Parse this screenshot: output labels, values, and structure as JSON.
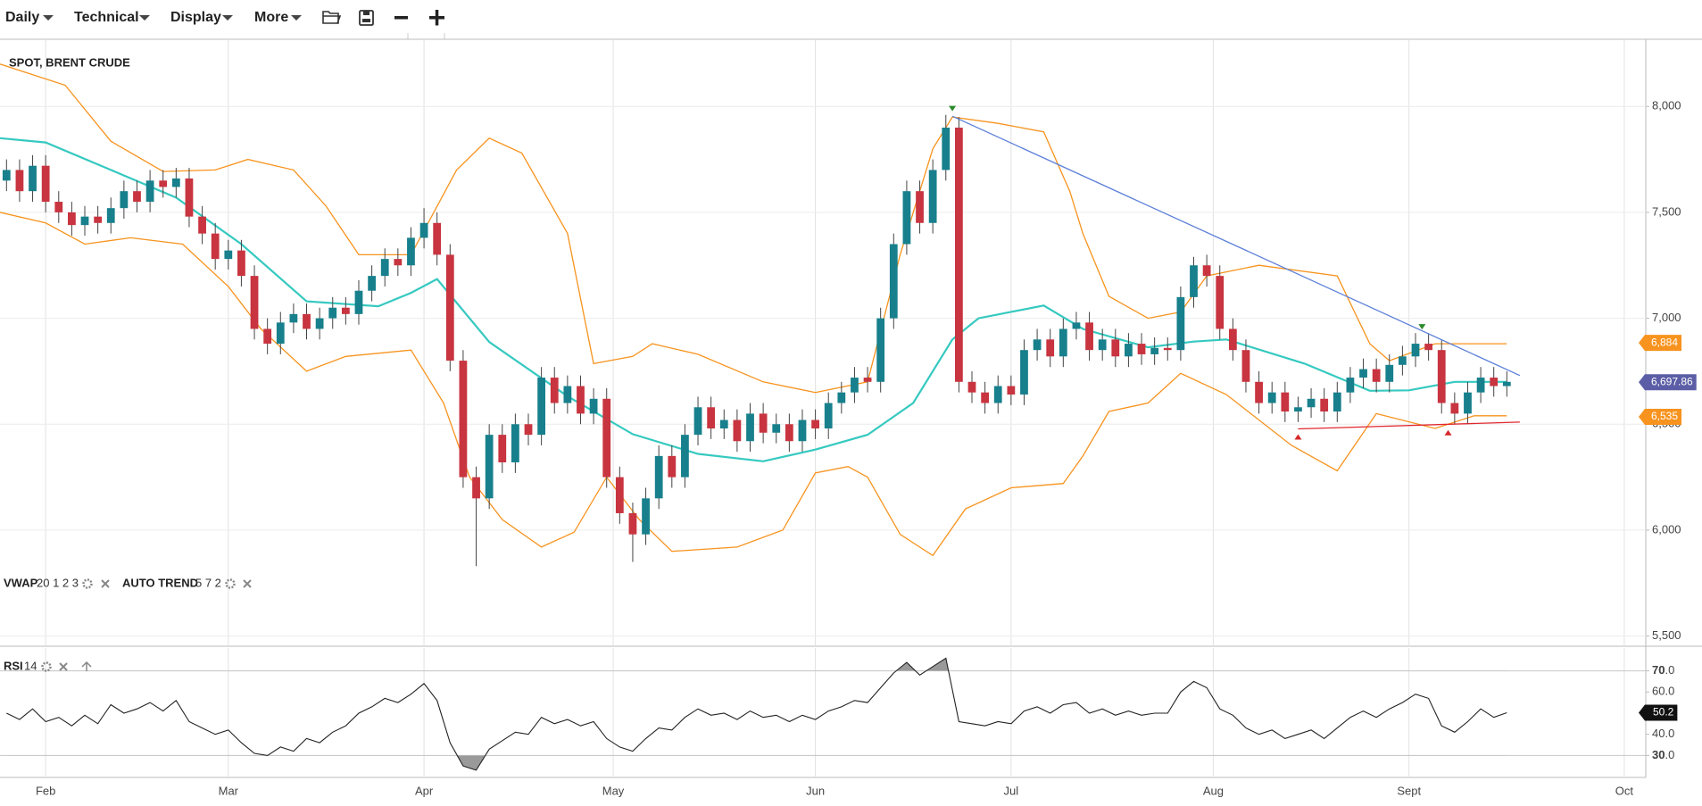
{
  "toolbar": {
    "menus": [
      "Daily",
      "Technical",
      "Display",
      "More"
    ]
  },
  "chart_data": [
    {
      "type": "candlestick",
      "title": "SPOT, BRENT CRUDE",
      "indicators": [
        {
          "name": "VWAP",
          "params": "20 1 2 3"
        },
        {
          "name": "AUTO TREND",
          "params": "5 7 2"
        }
      ],
      "x": [
        25,
        27,
        29,
        31,
        33,
        35,
        37,
        39,
        41,
        43,
        45,
        47,
        49,
        51,
        53,
        55,
        57,
        59,
        61,
        63,
        65,
        67,
        69,
        71,
        73,
        75,
        77,
        79,
        81,
        83,
        85,
        87,
        89,
        91,
        93,
        95,
        97,
        99,
        101,
        103,
        105,
        107,
        109,
        111,
        113,
        115,
        117,
        119,
        121,
        123,
        125,
        127,
        129,
        131,
        133,
        135,
        137,
        139,
        141,
        143,
        145,
        147,
        149,
        151,
        153,
        155,
        157,
        159,
        161,
        163,
        165,
        167,
        169,
        171,
        173,
        175,
        177,
        179,
        181,
        183,
        185,
        187,
        189,
        191,
        193,
        195,
        197,
        199,
        201,
        203,
        205,
        207,
        209,
        211,
        213,
        215,
        217,
        219,
        221,
        223,
        225,
        227,
        229,
        231,
        233,
        235,
        237,
        239,
        241,
        243,
        245,
        247,
        249,
        251,
        253,
        255
      ],
      "open": [
        7650,
        7700,
        7600,
        7720,
        7550,
        7500,
        7440,
        7480,
        7450,
        7520,
        7600,
        7550,
        7650,
        7620,
        7660,
        7480,
        7400,
        7280,
        7320,
        7200,
        6950,
        6880,
        6980,
        7020,
        6950,
        7000,
        7050,
        7020,
        7130,
        7200,
        7280,
        7250,
        7380,
        7450,
        7300,
        6800,
        6250,
        6150,
        6450,
        6320,
        6500,
        6450,
        6720,
        6600,
        6680,
        6550,
        6620,
        6250,
        6080,
        5980,
        6150,
        6350,
        6250,
        6450,
        6580,
        6480,
        6520,
        6420,
        6550,
        6460,
        6500,
        6420,
        6520,
        6480,
        6600,
        6650,
        6720,
        6700,
        7000,
        7350,
        7600,
        7450,
        7700,
        7900,
        6700,
        6650,
        6600,
        6680,
        6640,
        6850,
        6900,
        6820,
        6950,
        6980,
        6850,
        6900,
        6820,
        6880,
        6830,
        6860,
        6850,
        7100,
        7250,
        7200,
        6950,
        6850,
        6700,
        6600,
        6650,
        6560,
        6580,
        6620,
        6560,
        6650,
        6720,
        6760,
        6700,
        6780,
        6820,
        6880,
        6850,
        6600,
        6550,
        6650,
        6720,
        6680
      ],
      "high": [
        7750,
        7750,
        7770,
        7770,
        7600,
        7550,
        7530,
        7530,
        7570,
        7650,
        7650,
        7700,
        7700,
        7710,
        7710,
        7530,
        7450,
        7370,
        7370,
        7250,
        7000,
        7030,
        7070,
        7070,
        7050,
        7100,
        7100,
        7180,
        7250,
        7330,
        7330,
        7430,
        7520,
        7500,
        7350,
        6850,
        6300,
        6500,
        6500,
        6550,
        6550,
        6770,
        6770,
        6730,
        6730,
        6670,
        6670,
        6300,
        6130,
        6200,
        6400,
        6400,
        6500,
        6630,
        6630,
        6570,
        6570,
        6600,
        6600,
        6550,
        6550,
        6570,
        6570,
        6650,
        6700,
        6770,
        6770,
        7050,
        7400,
        7650,
        7650,
        7750,
        7960,
        7950,
        6750,
        6700,
        6730,
        6730,
        6900,
        6950,
        6950,
        7000,
        7030,
        7030,
        6950,
        6950,
        6930,
        6930,
        6910,
        6910,
        7150,
        7290,
        7300,
        7250,
        7000,
        6900,
        6750,
        6700,
        6700,
        6630,
        6670,
        6670,
        6700,
        6770,
        6810,
        6810,
        6830,
        6870,
        6930,
        6930,
        6900,
        6650,
        6700,
        6770,
        6770,
        6750
      ],
      "low": [
        7600,
        7550,
        7550,
        7500,
        7450,
        7390,
        7390,
        7400,
        7400,
        7470,
        7500,
        7500,
        7570,
        7570,
        7430,
        7350,
        7230,
        7230,
        7150,
        6900,
        6830,
        6830,
        6930,
        6900,
        6900,
        6950,
        6970,
        6970,
        7080,
        7150,
        7200,
        7200,
        7330,
        7250,
        6750,
        6200,
        5830,
        6100,
        6270,
        6270,
        6400,
        6400,
        6550,
        6550,
        6500,
        6500,
        6200,
        6030,
        5850,
        5930,
        6100,
        6200,
        6200,
        6400,
        6430,
        6430,
        6370,
        6370,
        6410,
        6410,
        6370,
        6370,
        6430,
        6430,
        6550,
        6600,
        6650,
        6650,
        6950,
        7300,
        7400,
        7400,
        7650,
        6650,
        6600,
        6550,
        6550,
        6590,
        6590,
        6800,
        6770,
        6770,
        6900,
        6800,
        6800,
        6770,
        6770,
        6780,
        6780,
        6800,
        6800,
        7050,
        7150,
        6900,
        6800,
        6650,
        6550,
        6550,
        6510,
        6510,
        6530,
        6510,
        6510,
        6600,
        6670,
        6650,
        6650,
        6730,
        6770,
        6800,
        6550,
        6500,
        6500,
        6600,
        6630,
        6630
      ],
      "close": [
        7700,
        7600,
        7720,
        7550,
        7500,
        7440,
        7480,
        7450,
        7520,
        7600,
        7550,
        7650,
        7620,
        7660,
        7480,
        7400,
        7280,
        7320,
        7200,
        6950,
        6880,
        6980,
        7020,
        6950,
        7000,
        7050,
        7020,
        7130,
        7200,
        7280,
        7250,
        7380,
        7450,
        7300,
        6800,
        6250,
        6150,
        6450,
        6320,
        6500,
        6450,
        6720,
        6600,
        6680,
        6550,
        6620,
        6250,
        6080,
        5980,
        6150,
        6350,
        6250,
        6450,
        6580,
        6480,
        6520,
        6420,
        6550,
        6460,
        6500,
        6420,
        6520,
        6480,
        6600,
        6650,
        6720,
        6700,
        7000,
        7350,
        7600,
        7450,
        7700,
        7900,
        6700,
        6650,
        6600,
        6680,
        6640,
        6850,
        6900,
        6820,
        6950,
        6980,
        6850,
        6900,
        6820,
        6880,
        6830,
        6860,
        6850,
        7100,
        7250,
        7200,
        6950,
        6850,
        6700,
        6600,
        6650,
        6560,
        6580,
        6620,
        6560,
        6650,
        6720,
        6760,
        6700,
        6780,
        6820,
        6880,
        6850,
        6600,
        6550,
        6650,
        6720,
        6680,
        6700
      ],
      "up_color": "#17808c",
      "down_color": "#c8343f",
      "lines": [
        {
          "color": "#35c9c0",
          "x": [
            24,
            31,
            41,
            51,
            61,
            71,
            82,
            87,
            91,
            99,
            111,
            121,
            131,
            141,
            149,
            157,
            164,
            170,
            174,
            184,
            190,
            200,
            207,
            212,
            224,
            234,
            240,
            247,
            255
          ],
          "values": [
            7850,
            7830,
            7700,
            7570,
            7350,
            7080,
            7057,
            7120,
            7185,
            6888,
            6632,
            6453,
            6360,
            6325,
            6380,
            6450,
            6600,
            6900,
            7000,
            7060,
            6950,
            6863,
            6890,
            6900,
            6786,
            6658,
            6660,
            6700,
            6700
          ]
        },
        {
          "color": "#f7931e",
          "x": [
            24,
            34,
            41,
            49,
            57,
            62,
            69,
            74,
            79,
            87,
            94,
            99,
            104,
            111,
            115,
            121,
            124,
            131,
            141,
            149,
            157,
            162,
            167,
            170,
            177,
            184,
            188,
            190,
            194,
            200,
            205,
            209,
            217,
            229,
            234,
            237,
            244,
            255
          ],
          "values": [
            8200,
            8100,
            7836,
            7693,
            7700,
            7750,
            7700,
            7529,
            7300,
            7300,
            7700,
            7850,
            7780,
            7400,
            6786,
            6820,
            6880,
            6830,
            6700,
            6650,
            6700,
            7300,
            7800,
            7950,
            7920,
            7880,
            7600,
            7400,
            7104,
            7000,
            7030,
            7200,
            7250,
            7200,
            6880,
            6800,
            6880,
            6880
          ]
        },
        {
          "color": "#f7931e",
          "x": [
            24,
            31,
            37,
            44,
            52,
            59,
            64,
            71,
            77,
            87,
            92,
            96,
            101,
            107,
            112,
            117,
            122,
            127,
            137,
            144,
            149,
            154,
            157,
            162,
            167,
            172,
            179,
            187,
            190,
            194,
            200,
            205,
            212,
            222,
            229,
            235,
            244,
            250,
            255
          ],
          "values": [
            7500,
            7450,
            7350,
            7380,
            7350,
            7150,
            6950,
            6750,
            6820,
            6850,
            6600,
            6250,
            6050,
            5920,
            5990,
            6250,
            6050,
            5900,
            5920,
            6000,
            6270,
            6300,
            6250,
            5980,
            5880,
            6100,
            6200,
            6220,
            6350,
            6560,
            6600,
            6740,
            6640,
            6400,
            6280,
            6550,
            6480,
            6540,
            6540
          ]
        }
      ],
      "trendlines": [
        {
          "color": "#5c7fd9",
          "x": [
            170,
            257
          ],
          "values": [
            7954,
            6730
          ]
        },
        {
          "color": "#e0282e",
          "x": [
            223,
            257
          ],
          "values": [
            6478,
            6510
          ]
        }
      ],
      "peak_markers": {
        "color": "#2a8a2a",
        "x": [
          170,
          242
        ],
        "values": [
          7990,
          6960
        ]
      },
      "trough_markers": {
        "color": "#d62728",
        "x": [
          223,
          246
        ],
        "values": [
          6440,
          6460
        ]
      },
      "price_labels": [
        {
          "value": 6884,
          "label": "6,884",
          "color": "#f7931e"
        },
        {
          "value": 6697.86,
          "label": "6,697.86",
          "color": "#5b5ea6"
        },
        {
          "value": 6535,
          "label": "6,535",
          "color": "#f7931e"
        }
      ],
      "xlim": [
        24,
        276.3
      ],
      "xticks": [
        {
          "value": 31,
          "label": "Feb"
        },
        {
          "value": 59,
          "label": "Mar"
        },
        {
          "value": 89,
          "label": "Apr"
        },
        {
          "value": 118,
          "label": "May"
        },
        {
          "value": 149,
          "label": "Jun"
        },
        {
          "value": 179,
          "label": "Jul"
        },
        {
          "value": 210,
          "label": "Aug"
        },
        {
          "value": 240,
          "label": "Sept"
        },
        {
          "value": 273,
          "label": "Oct"
        }
      ],
      "ylim": [
        5452,
        8317
      ],
      "yticks": [
        {
          "value": 5500,
          "label": "5,500"
        },
        {
          "value": 6000,
          "label": "6,000"
        },
        {
          "value": 6500,
          "label": "6,500"
        },
        {
          "value": 7000,
          "label": "7,000"
        },
        {
          "value": 7500,
          "label": "7,500"
        },
        {
          "value": 8000,
          "label": "8,000"
        }
      ],
      "grid": true
    },
    {
      "type": "line",
      "title": "RSI",
      "params": "14",
      "color": "#222",
      "x": [
        25,
        27,
        29,
        31,
        33,
        35,
        37,
        39,
        41,
        43,
        45,
        47,
        49,
        51,
        53,
        55,
        57,
        59,
        61,
        63,
        65,
        67,
        69,
        71,
        73,
        75,
        77,
        79,
        81,
        83,
        85,
        87,
        89,
        91,
        93,
        95,
        97,
        99,
        101,
        103,
        105,
        107,
        109,
        111,
        113,
        115,
        117,
        119,
        121,
        123,
        125,
        127,
        129,
        131,
        133,
        135,
        137,
        139,
        141,
        143,
        145,
        147,
        149,
        151,
        153,
        155,
        157,
        159,
        161,
        163,
        165,
        167,
        169,
        171,
        173,
        175,
        177,
        179,
        181,
        183,
        185,
        187,
        189,
        191,
        193,
        195,
        197,
        199,
        201,
        203,
        205,
        207,
        209,
        211,
        213,
        215,
        217,
        219,
        221,
        223,
        225,
        227,
        229,
        231,
        233,
        235,
        237,
        239,
        241,
        243,
        245,
        247,
        249,
        251,
        253,
        255
      ],
      "values": [
        50,
        47,
        52,
        46,
        48,
        44,
        49,
        45,
        54,
        50,
        52,
        55,
        51,
        56,
        46,
        43,
        40,
        42,
        36,
        31,
        30,
        34,
        32,
        38,
        36,
        41,
        44,
        50,
        53,
        57,
        55,
        59,
        64,
        56,
        36,
        25,
        23,
        33,
        37,
        41,
        40,
        48,
        45,
        47,
        44,
        46,
        38,
        34,
        32,
        38,
        43,
        42,
        48,
        52,
        49,
        50,
        47,
        51,
        48,
        49,
        46,
        49,
        47,
        51,
        53,
        56,
        55,
        62,
        69,
        74,
        68,
        72,
        76,
        46,
        45,
        44,
        46,
        45,
        51,
        53,
        50,
        54,
        55,
        50,
        52,
        49,
        51,
        49,
        50,
        50,
        60,
        65,
        62,
        52,
        49,
        43,
        40,
        42,
        38,
        40,
        42,
        38,
        43,
        48,
        51,
        48,
        52,
        55,
        59,
        57,
        44,
        41,
        46,
        52,
        48,
        50.2
      ],
      "last_label": 50.2,
      "bands": [
        70,
        30
      ],
      "ylim": [
        19.6,
        80.8
      ],
      "yticks": [
        {
          "value": 70,
          "label": "70.0"
        },
        {
          "value": 60,
          "label": "60.0"
        },
        {
          "value": 40,
          "label": "40.0"
        },
        {
          "value": 30,
          "label": "30.0"
        }
      ]
    }
  ]
}
